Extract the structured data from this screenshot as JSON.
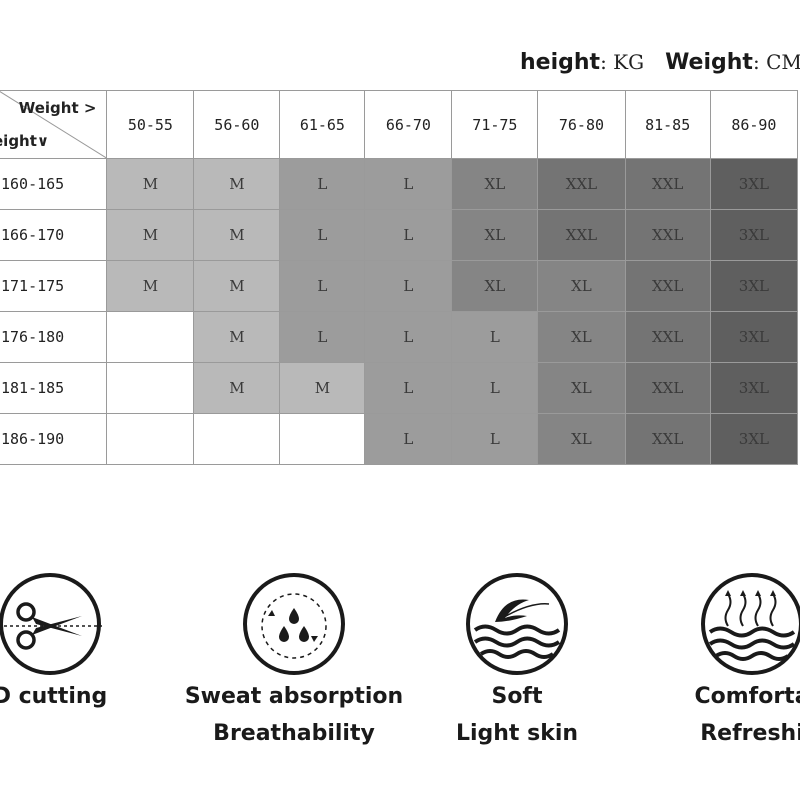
{
  "units": {
    "height_label": "height",
    "height_unit": "KG",
    "weight_label": "Weight",
    "weight_unit": "CM"
  },
  "table": {
    "corner_weight_label": "Weight >",
    "corner_height_label": "eight∨",
    "weight_columns": [
      "50-55",
      "56-60",
      "61-65",
      "66-70",
      "71-75",
      "76-80",
      "81-85",
      "86-90"
    ],
    "rows": [
      {
        "height": "160-165",
        "sizes": [
          "M",
          "M",
          "L",
          "L",
          "XL",
          "XXL",
          "XXL",
          "3XL"
        ]
      },
      {
        "height": "166-170",
        "sizes": [
          "M",
          "M",
          "L",
          "L",
          "XL",
          "XXL",
          "XXL",
          "3XL"
        ]
      },
      {
        "height": "171-175",
        "sizes": [
          "M",
          "M",
          "L",
          "L",
          "XL",
          "XL",
          "XXL",
          "3XL"
        ]
      },
      {
        "height": "176-180",
        "sizes": [
          "",
          "M",
          "L",
          "L",
          "L",
          "XL",
          "XXL",
          "3XL"
        ]
      },
      {
        "height": "181-185",
        "sizes": [
          "",
          "M",
          "M",
          "L",
          "L",
          "XL",
          "XXL",
          "3XL"
        ]
      },
      {
        "height": "186-190",
        "sizes": [
          "",
          "",
          "",
          "L",
          "L",
          "XL",
          "XXL",
          "3XL"
        ]
      }
    ],
    "size_colors": {
      "M": "#b9b9b9",
      "L": "#9c9c9c",
      "XL": "#858585",
      "XXL": "#747474",
      "3XL": "#5f5f5f",
      "empty": "#ffffff"
    }
  },
  "features": [
    {
      "icon": "scissors-icon",
      "line1": "D cutting",
      "line2": ""
    },
    {
      "icon": "sweat-drops-icon",
      "line1": "Sweat absorption",
      "line2": "Breathability"
    },
    {
      "icon": "feather-wave-icon",
      "line1": "Soft",
      "line2": "Light skin"
    },
    {
      "icon": "heat-waves-icon",
      "line1": "Comforta",
      "line2": "Refreshi"
    }
  ]
}
